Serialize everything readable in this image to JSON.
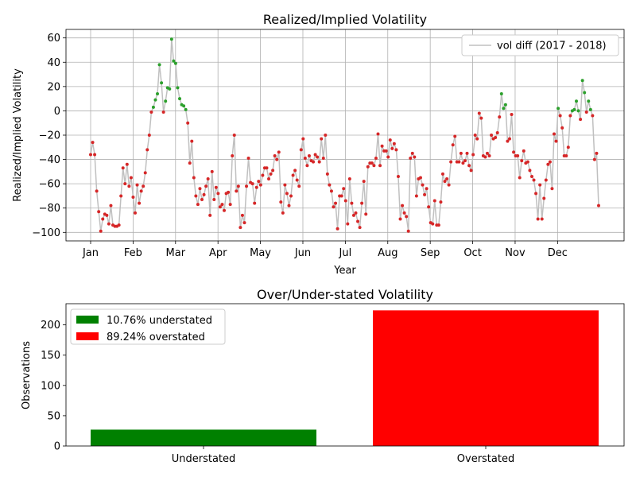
{
  "chart_data": [
    {
      "type": "line",
      "title": "Realized/Implied Volatility",
      "xlabel": "Year",
      "ylabel": "Realized/Implied Volatility",
      "ylim": [
        -107,
        67
      ],
      "yticks": [
        -100,
        -80,
        -60,
        -40,
        -20,
        0,
        20,
        40,
        60
      ],
      "xticks": [
        "Jan",
        "Feb",
        "Mar",
        "Apr",
        "May",
        "Jun",
        "Jul",
        "Aug",
        "Sep",
        "Oct",
        "Nov",
        "Dec"
      ],
      "grid": true,
      "legend_position": "top-right",
      "series": [
        {
          "name": "vol diff (2017 - 2018)",
          "line_color": "#c0c0c0",
          "marker_color_positive": "#2ca02c",
          "marker_color_negative": "#d62728",
          "values": [
            -36,
            -26,
            -36,
            -66,
            -83,
            -99,
            -89,
            -85,
            -86,
            -93,
            -78,
            -94,
            -95,
            -95,
            -94,
            -70,
            -47,
            -60,
            -44,
            -62,
            -55,
            -71,
            -84,
            -61,
            -76,
            -66,
            -62,
            -51,
            -32,
            -20,
            -1,
            3,
            9,
            14,
            38,
            23,
            -1,
            8,
            19,
            18,
            59,
            41,
            39,
            19,
            10,
            5,
            4,
            1,
            -10,
            -43,
            -25,
            -55,
            -70,
            -77,
            -64,
            -73,
            -69,
            -62,
            -56,
            -86,
            -50,
            -73,
            -63,
            -68,
            -79,
            -77,
            -82,
            -68,
            -67,
            -77,
            -37,
            -20,
            -66,
            -62,
            -96,
            -86,
            -92,
            -62,
            -39,
            -59,
            -60,
            -76,
            -63,
            -58,
            -61,
            -53,
            -47,
            -47,
            -56,
            -52,
            -49,
            -37,
            -40,
            -34,
            -75,
            -84,
            -61,
            -68,
            -78,
            -70,
            -53,
            -49,
            -57,
            -62,
            -32,
            -23,
            -39,
            -45,
            -37,
            -41,
            -42,
            -36,
            -38,
            -42,
            -23,
            -39,
            -20,
            -52,
            -61,
            -66,
            -79,
            -76,
            -97,
            -70,
            -70,
            -64,
            -74,
            -93,
            -56,
            -76,
            -86,
            -84,
            -91,
            -96,
            -76,
            -58,
            -85,
            -46,
            -43,
            -43,
            -45,
            -39,
            -19,
            -45,
            -29,
            -33,
            -33,
            -38,
            -24,
            -31,
            -27,
            -32,
            -54,
            -89,
            -78,
            -84,
            -87,
            -99,
            -39,
            -35,
            -38,
            -70,
            -56,
            -55,
            -61,
            -69,
            -64,
            -79,
            -92,
            -93,
            -74,
            -94,
            -94,
            -75,
            -52,
            -58,
            -56,
            -61,
            -42,
            -28,
            -21,
            -42,
            -42,
            -35,
            -43,
            -41,
            -35,
            -45,
            -49,
            -36,
            -20,
            -23,
            -2,
            -6,
            -37,
            -38,
            -35,
            -37,
            -20,
            -23,
            -22,
            -18,
            -5,
            14,
            2,
            5,
            -25,
            -23,
            -3,
            -34,
            -37,
            -37,
            -55,
            -41,
            -33,
            -43,
            -42,
            -49,
            -54,
            -57,
            -68,
            -89,
            -61,
            -89,
            -72,
            -57,
            -44,
            -42,
            -64,
            -19,
            -25,
            2,
            -4,
            -14,
            -37,
            -37,
            -30,
            -4,
            0,
            1,
            8,
            0,
            -7,
            25,
            15,
            -1,
            8,
            1,
            -4,
            -40,
            -35,
            -78
          ]
        }
      ]
    },
    {
      "type": "bar",
      "title": "Over/Under-stated Volatility",
      "xlabel": "",
      "ylabel": "Observations",
      "ylim": [
        0,
        235
      ],
      "yticks": [
        0,
        50,
        100,
        150,
        200
      ],
      "categories": [
        "Understated",
        "Overstated"
      ],
      "values": [
        27,
        224
      ],
      "colors": [
        "#008000",
        "#ff0000"
      ],
      "legend_position": "top-left",
      "legend": [
        "10.76% understated",
        "89.24% overstated"
      ]
    }
  ]
}
